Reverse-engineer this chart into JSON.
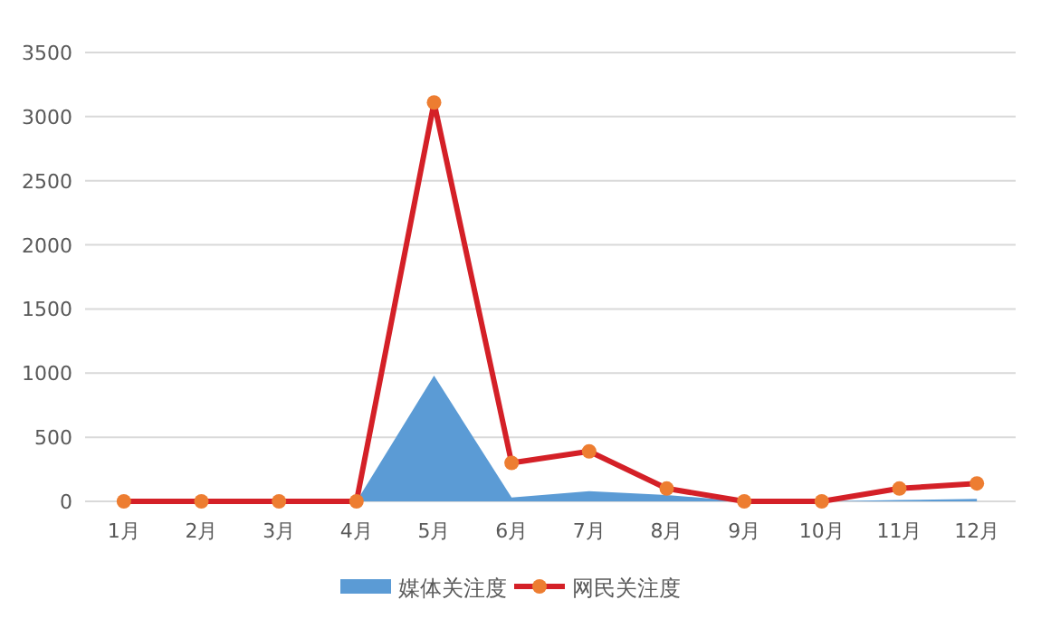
{
  "chart_data": {
    "type": "line",
    "categories": [
      "1月",
      "2月",
      "3月",
      "4月",
      "5月",
      "6月",
      "7月",
      "8月",
      "9月",
      "10月",
      "11月",
      "12月"
    ],
    "series": [
      {
        "name": "媒体关注度",
        "type": "area",
        "color": "#5b9bd5",
        "values": [
          0,
          0,
          0,
          0,
          980,
          30,
          80,
          50,
          0,
          0,
          10,
          20
        ]
      },
      {
        "name": "网民关注度",
        "color": "#d42027",
        "colors": [
          "#ed7d31",
          "#ed7d31",
          "#ed7d31",
          "#ed7d31",
          "#ed7d31",
          "#ed7d31",
          "#ed7d31",
          "#ed7d31",
          "#ed7d31",
          "#ed7d31",
          "#ed7d31",
          "#ed7d31"
        ],
        "marker": "circle",
        "values": [
          0,
          0,
          0,
          0,
          3110,
          300,
          390,
          100,
          0,
          0,
          100,
          140
        ]
      }
    ],
    "ylim": [
      0,
      3500
    ],
    "yticks": [
      0,
      500,
      1000,
      1500,
      2000,
      2500,
      3000,
      3500
    ],
    "grid": "y",
    "legend": "bottom"
  }
}
